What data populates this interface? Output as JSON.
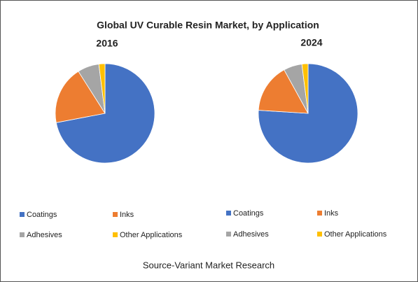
{
  "title": "Global UV Curable Resin Market, by Application",
  "source": "Source-Variant Market Research",
  "chart_data": [
    {
      "type": "pie",
      "title": "2016",
      "categories": [
        "Coatings",
        "Inks",
        "Adhesives",
        "Other Applications"
      ],
      "values": [
        72,
        19,
        7,
        2
      ],
      "colors": [
        "#4472c4",
        "#ed7d31",
        "#a5a5a5",
        "#ffc000"
      ]
    },
    {
      "type": "pie",
      "title": "2024",
      "categories": [
        "Coatings",
        "Inks",
        "Adhesives",
        "Other Applications"
      ],
      "values": [
        76,
        16,
        6,
        2
      ],
      "colors": [
        "#4472c4",
        "#ed7d31",
        "#a5a5a5",
        "#ffc000"
      ]
    }
  ]
}
